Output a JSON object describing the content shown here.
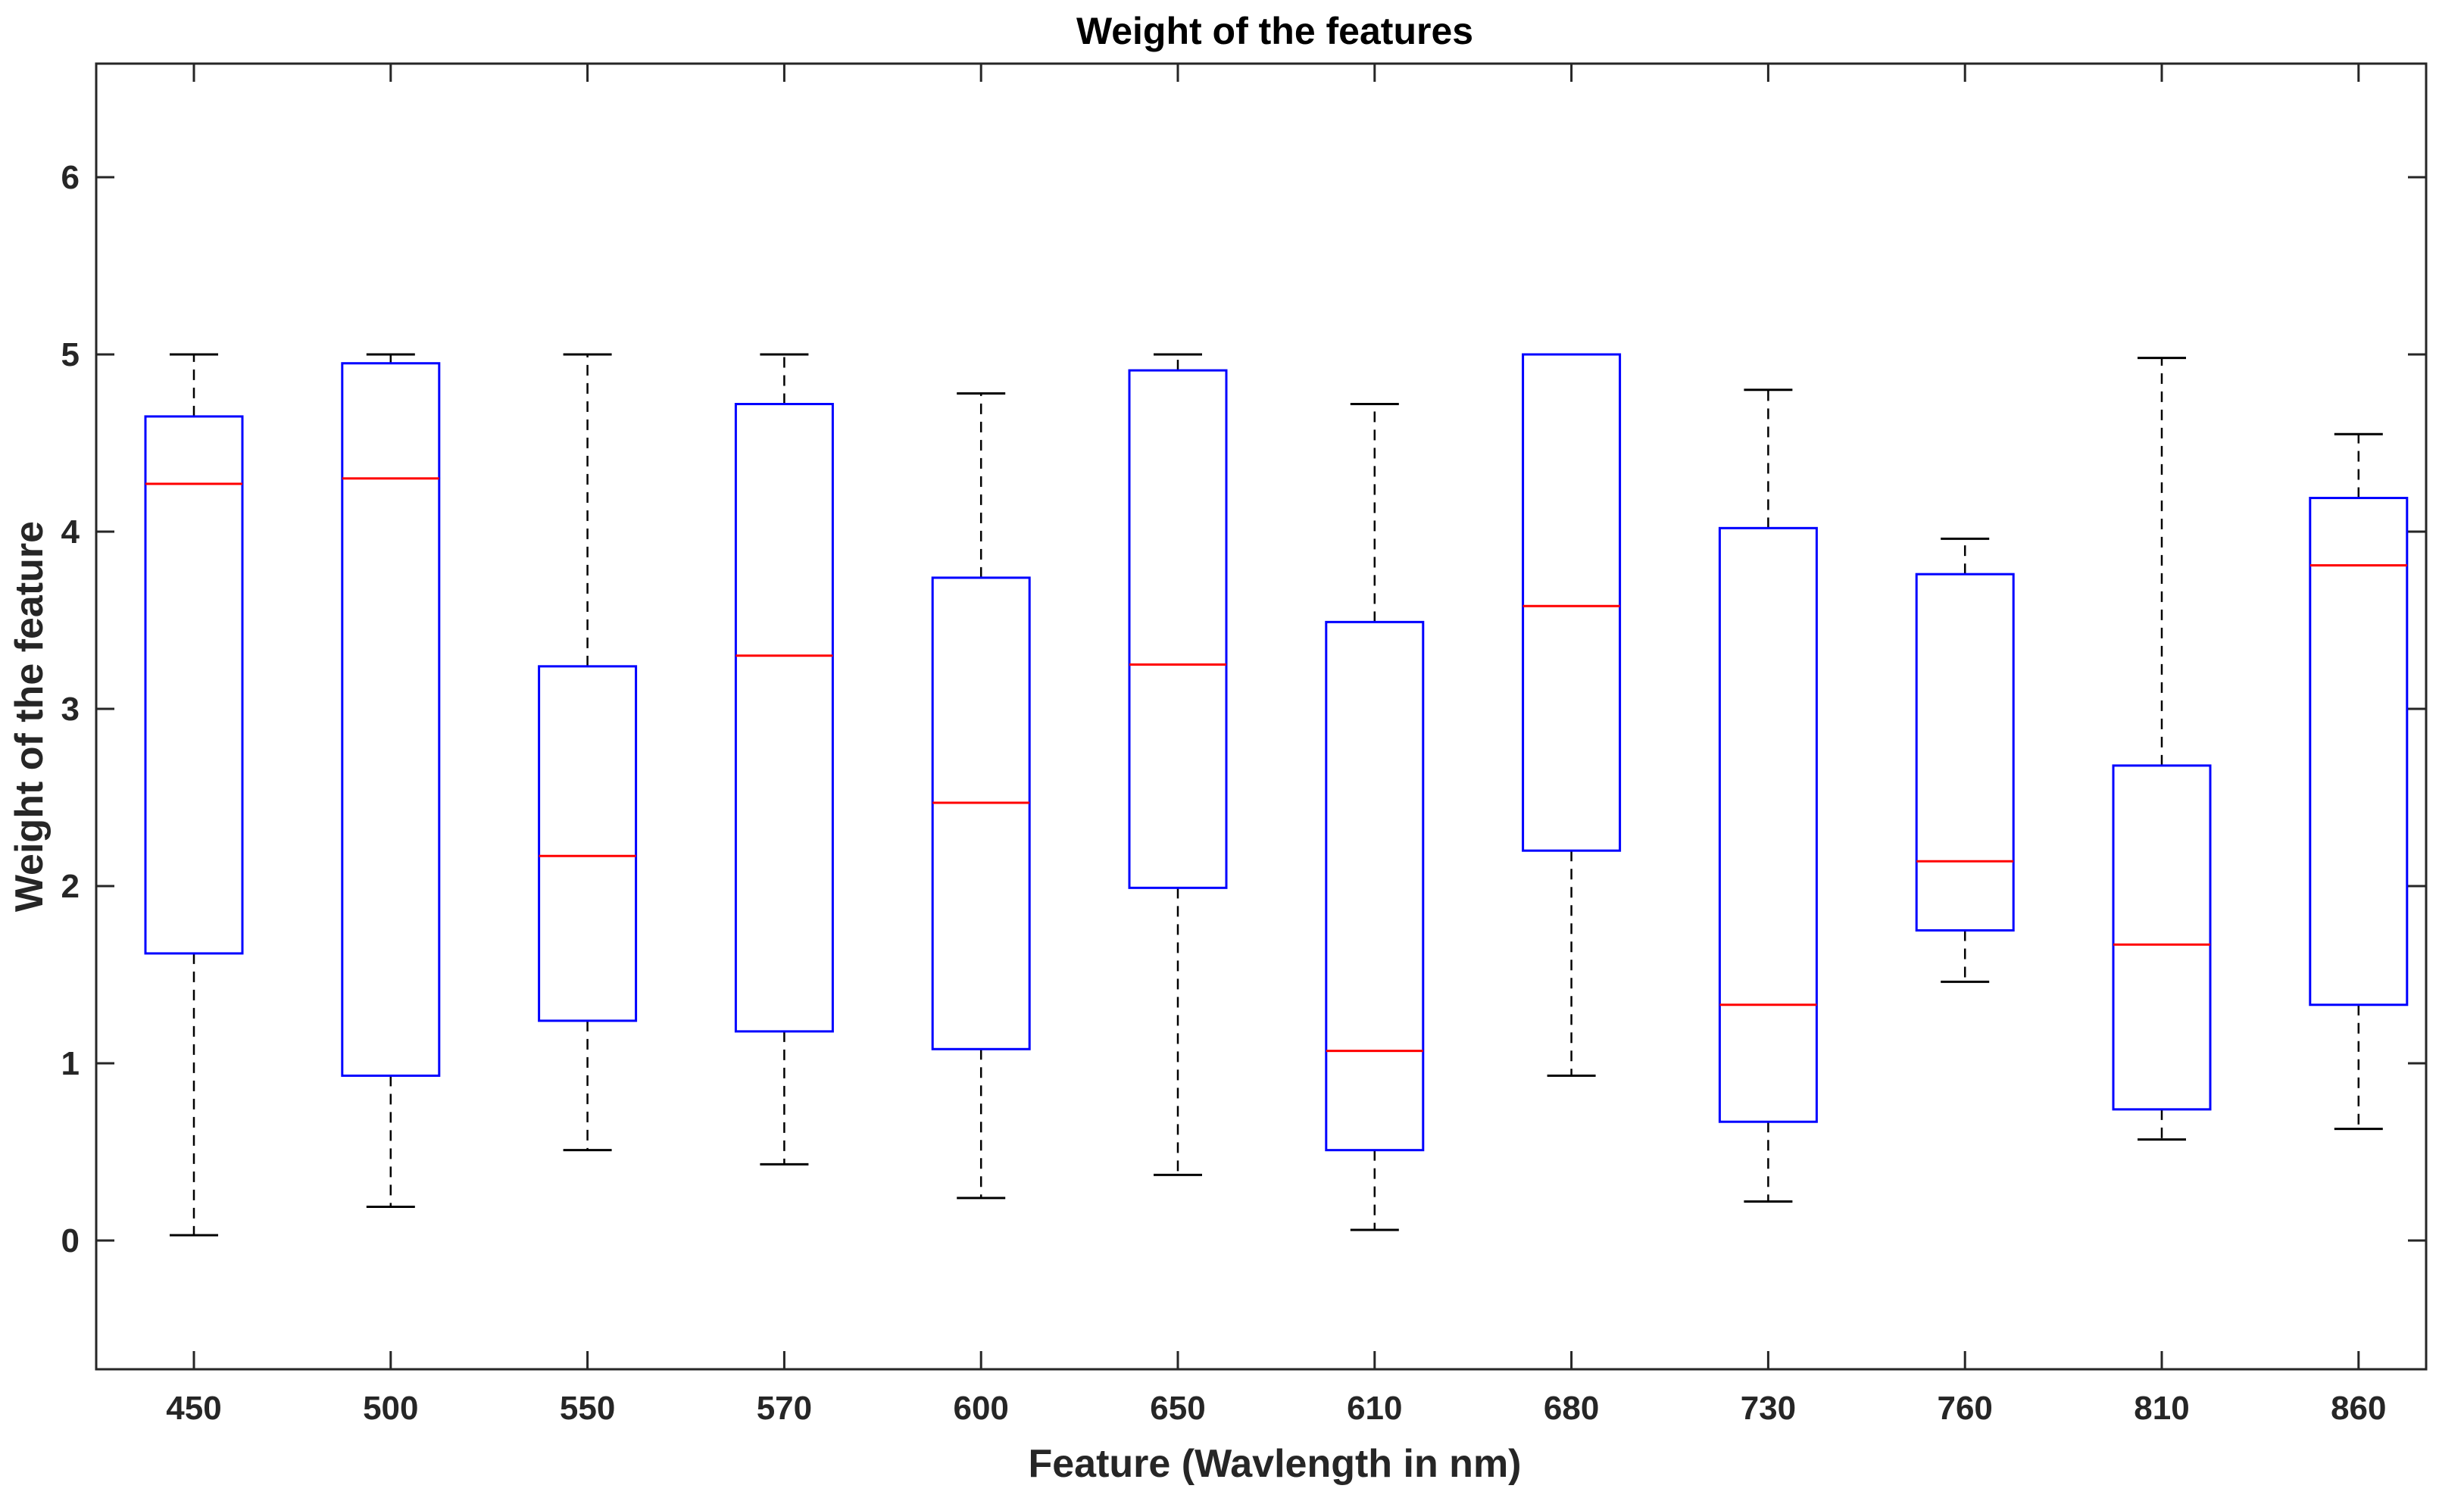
{
  "chart_data": {
    "type": "boxplot",
    "title": "Weight of the features",
    "xlabel": "Feature (Wavlength in nm)",
    "ylabel": "Weight of the feature",
    "ylim": [
      -0.75,
      6.6
    ],
    "yticks": [
      "0",
      "1",
      "2",
      "3",
      "4",
      "5",
      "6"
    ],
    "grid": false,
    "categories": [
      "450",
      "500",
      "550",
      "570",
      "600",
      "650",
      "610",
      "680",
      "730",
      "760",
      "810",
      "860"
    ],
    "boxes": [
      {
        "min": 0.03,
        "q1": 1.62,
        "median": 4.27,
        "q3": 4.65,
        "max": 5.0
      },
      {
        "min": 0.19,
        "q1": 0.93,
        "median": 4.3,
        "q3": 4.95,
        "max": 5.0
      },
      {
        "min": 0.51,
        "q1": 1.24,
        "median": 2.17,
        "q3": 3.24,
        "max": 5.0
      },
      {
        "min": 0.43,
        "q1": 1.18,
        "median": 3.3,
        "q3": 4.72,
        "max": 5.0
      },
      {
        "min": 0.24,
        "q1": 1.08,
        "median": 2.47,
        "q3": 3.74,
        "max": 4.78
      },
      {
        "min": 0.37,
        "q1": 1.99,
        "median": 3.25,
        "q3": 4.91,
        "max": 5.0
      },
      {
        "min": 0.06,
        "q1": 0.51,
        "median": 1.07,
        "q3": 3.49,
        "max": 4.72
      },
      {
        "min": 0.93,
        "q1": 2.2,
        "median": 3.58,
        "q3": 5.0,
        "max": 5.0
      },
      {
        "min": 0.22,
        "q1": 0.67,
        "median": 1.33,
        "q3": 4.02,
        "max": 4.8
      },
      {
        "min": 1.46,
        "q1": 1.75,
        "median": 2.14,
        "q3": 3.76,
        "max": 3.96
      },
      {
        "min": 0.57,
        "q1": 0.74,
        "median": 1.67,
        "q3": 2.68,
        "max": 4.98
      },
      {
        "min": 0.63,
        "q1": 1.33,
        "median": 3.81,
        "q3": 4.19,
        "max": 4.55
      }
    ],
    "colors": {
      "box": "#0000ff",
      "median": "#ff0000",
      "whisker": "#000000",
      "axis": "#262626"
    }
  }
}
